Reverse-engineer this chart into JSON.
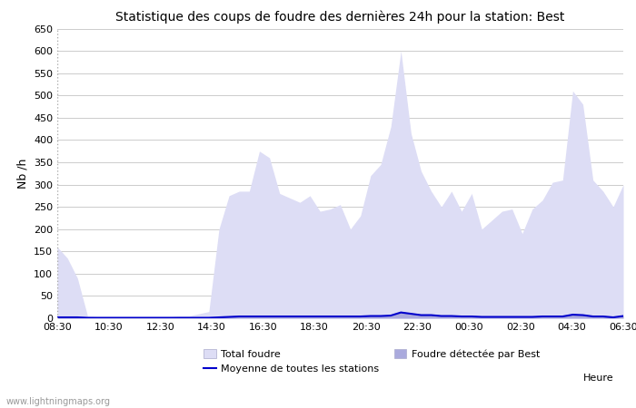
{
  "title": "Statistique des coups de foudre des dernières 24h pour la station: Best",
  "ylabel": "Nb /h",
  "xlabel": "Heure",
  "watermark": "www.lightningmaps.org",
  "ylim": [
    0,
    650
  ],
  "yticks": [
    0,
    50,
    100,
    150,
    200,
    250,
    300,
    350,
    400,
    450,
    500,
    550,
    600,
    650
  ],
  "xtick_labels": [
    "08:30",
    "10:30",
    "12:30",
    "14:30",
    "16:30",
    "18:30",
    "20:30",
    "22:30",
    "00:30",
    "02:30",
    "04:30",
    "06:30"
  ],
  "bg_color": "#ffffff",
  "grid_color": "#cccccc",
  "fill_total_color": "#ddddf5",
  "fill_detected_color": "#aaaadd",
  "line_mean_color": "#0000cc",
  "total_foudre": [
    160,
    135,
    90,
    5,
    3,
    3,
    3,
    3,
    3,
    3,
    3,
    3,
    5,
    5,
    10,
    15,
    200,
    275,
    285,
    285,
    375,
    360,
    280,
    270,
    260,
    275,
    240,
    245,
    255,
    200,
    230,
    320,
    345,
    430,
    600,
    415,
    330,
    285,
    250,
    285,
    240,
    280,
    200,
    220,
    240,
    245,
    190,
    245,
    265,
    305,
    310,
    510,
    480,
    310,
    285,
    250,
    300
  ],
  "detected_foudre": [
    3,
    3,
    3,
    2,
    2,
    2,
    2,
    2,
    2,
    2,
    2,
    2,
    2,
    2,
    2,
    2,
    3,
    4,
    5,
    5,
    5,
    5,
    5,
    5,
    5,
    5,
    5,
    5,
    5,
    5,
    5,
    5,
    5,
    5,
    15,
    12,
    8,
    8,
    5,
    5,
    5,
    5,
    5,
    5,
    5,
    5,
    5,
    5,
    5,
    5,
    5,
    10,
    8,
    5,
    5,
    3,
    6
  ],
  "mean_line": [
    2,
    2,
    2,
    1,
    1,
    1,
    1,
    1,
    1,
    1,
    1,
    1,
    1,
    1,
    1,
    1,
    2,
    3,
    4,
    4,
    4,
    4,
    4,
    4,
    4,
    4,
    4,
    4,
    4,
    4,
    4,
    5,
    5,
    6,
    13,
    10,
    7,
    7,
    5,
    5,
    4,
    4,
    3,
    3,
    3,
    3,
    3,
    3,
    4,
    4,
    4,
    8,
    7,
    4,
    4,
    2,
    5
  ]
}
